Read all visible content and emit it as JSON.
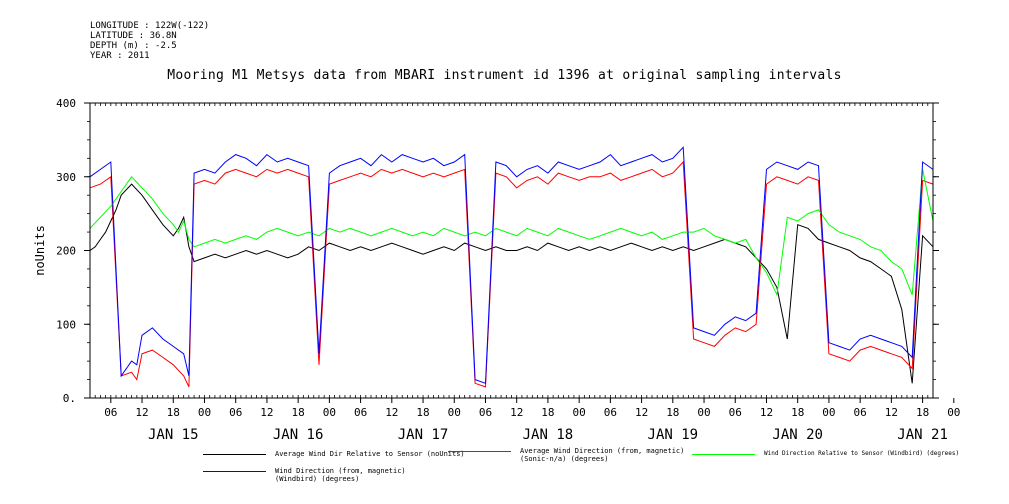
{
  "meta": {
    "longitude": "LONGITUDE : 122W(-122)",
    "latitude": "LATITUDE : 36.8N",
    "depth": "DEPTH (m) : -2.5",
    "year": "YEAR : 2011"
  },
  "chart_data": {
    "type": "line",
    "title": "Mooring M1 Metsys data from MBARI instrument id 1396 at original sampling intervals",
    "ylabel": "noUnits",
    "xlabel": "",
    "ylim": [
      0,
      400
    ],
    "yticks": [
      "0.",
      "100",
      "200",
      "300",
      "400"
    ],
    "xlim_hours": [
      0,
      162
    ],
    "hour_tick_labels": [
      "06",
      "12",
      "18",
      "00",
      "06",
      "12",
      "18",
      "00",
      "06",
      "12",
      "18",
      "00",
      "06",
      "12",
      "18",
      "00",
      "06",
      "12",
      "18",
      "00",
      "06",
      "12",
      "18",
      "00",
      "06",
      "12",
      "18",
      "00"
    ],
    "day_labels": [
      "JAN 15",
      "JAN 16",
      "JAN 17",
      "JAN 18",
      "JAN 19",
      "JAN 20",
      "JAN 21"
    ],
    "grid": false,
    "legend_position": "bottom",
    "series": [
      {
        "name": "Average Wind Dir Relative to Sensor (noUnits)",
        "color": "#000000",
        "x": [
          0,
          1,
          2,
          3,
          4,
          5,
          6,
          8,
          10,
          12,
          14,
          16,
          17,
          18,
          19,
          20,
          22,
          24,
          26,
          28,
          30,
          32,
          34,
          36,
          38,
          40,
          42,
          44,
          46,
          48,
          50,
          52,
          54,
          56,
          58,
          60,
          62,
          64,
          66,
          68,
          70,
          72,
          74,
          76,
          78,
          80,
          82,
          84,
          86,
          88,
          90,
          92,
          94,
          96,
          98,
          100,
          102,
          104,
          106,
          108,
          110,
          112,
          114,
          116,
          118,
          120,
          122,
          124,
          126,
          128,
          130,
          132,
          134,
          136,
          138,
          140,
          142,
          144,
          146,
          148,
          150,
          152,
          154,
          156,
          158,
          160,
          162
        ],
        "y": [
          200,
          205,
          215,
          225,
          240,
          255,
          275,
          290,
          275,
          255,
          235,
          220,
          230,
          245,
          205,
          185,
          190,
          195,
          190,
          195,
          200,
          195,
          200,
          195,
          190,
          195,
          205,
          200,
          210,
          205,
          200,
          205,
          200,
          205,
          210,
          205,
          200,
          195,
          200,
          205,
          200,
          210,
          205,
          200,
          205,
          200,
          200,
          205,
          200,
          210,
          205,
          200,
          205,
          200,
          205,
          200,
          205,
          210,
          205,
          200,
          205,
          200,
          205,
          200,
          205,
          210,
          215,
          210,
          205,
          190,
          175,
          150,
          80,
          235,
          230,
          215,
          210,
          205,
          200,
          190,
          185,
          175,
          165,
          120,
          20,
          220,
          205
        ]
      },
      {
        "name": "Average Wind Direction (from, magnetic) (Sonic-n/a) (degrees)",
        "color": "#ff0000",
        "x": [
          0,
          2,
          4,
          6,
          8,
          9,
          10,
          12,
          14,
          16,
          18,
          19,
          20,
          22,
          24,
          26,
          28,
          30,
          32,
          34,
          36,
          38,
          40,
          42,
          44,
          46,
          48,
          50,
          52,
          54,
          56,
          58,
          60,
          62,
          64,
          66,
          68,
          70,
          72,
          74,
          76,
          78,
          80,
          82,
          84,
          86,
          88,
          90,
          92,
          94,
          96,
          98,
          100,
          102,
          104,
          106,
          108,
          110,
          112,
          114,
          116,
          118,
          120,
          122,
          124,
          126,
          128,
          130,
          132,
          134,
          136,
          138,
          140,
          142,
          144,
          146,
          148,
          150,
          152,
          154,
          156,
          158,
          160,
          162
        ],
        "y": [
          285,
          290,
          300,
          30,
          35,
          25,
          60,
          65,
          55,
          45,
          30,
          15,
          290,
          295,
          290,
          305,
          310,
          305,
          300,
          310,
          305,
          310,
          305,
          300,
          45,
          290,
          295,
          300,
          305,
          300,
          310,
          305,
          310,
          305,
          300,
          305,
          300,
          305,
          310,
          20,
          15,
          305,
          300,
          285,
          295,
          300,
          290,
          305,
          300,
          295,
          300,
          300,
          305,
          295,
          300,
          305,
          310,
          300,
          305,
          320,
          80,
          75,
          70,
          85,
          95,
          90,
          100,
          290,
          300,
          295,
          290,
          300,
          295,
          60,
          55,
          50,
          65,
          70,
          65,
          60,
          55,
          40,
          295,
          290
        ]
      },
      {
        "name": "Wind Direction Relative to Sensor (Windbird) (degrees)",
        "color": "#00ff00",
        "x": [
          0,
          2,
          4,
          6,
          8,
          10,
          12,
          14,
          16,
          17,
          18,
          19,
          20,
          22,
          24,
          26,
          28,
          30,
          32,
          34,
          36,
          38,
          40,
          42,
          44,
          46,
          48,
          50,
          52,
          54,
          56,
          58,
          60,
          62,
          64,
          66,
          68,
          70,
          72,
          74,
          76,
          78,
          80,
          82,
          84,
          86,
          88,
          90,
          92,
          94,
          96,
          98,
          100,
          102,
          104,
          106,
          108,
          110,
          112,
          114,
          116,
          118,
          120,
          122,
          124,
          126,
          128,
          130,
          132,
          134,
          136,
          138,
          140,
          142,
          144,
          146,
          148,
          150,
          152,
          154,
          156,
          158,
          160,
          162
        ],
        "y": [
          230,
          245,
          260,
          280,
          300,
          285,
          270,
          250,
          235,
          225,
          240,
          215,
          205,
          210,
          215,
          210,
          215,
          220,
          215,
          225,
          230,
          225,
          220,
          225,
          220,
          230,
          225,
          230,
          225,
          220,
          225,
          230,
          225,
          220,
          225,
          220,
          230,
          225,
          220,
          225,
          220,
          230,
          225,
          220,
          230,
          225,
          220,
          230,
          225,
          220,
          215,
          220,
          225,
          230,
          225,
          220,
          225,
          215,
          220,
          225,
          225,
          230,
          220,
          215,
          210,
          215,
          190,
          170,
          140,
          245,
          240,
          250,
          255,
          235,
          225,
          220,
          215,
          205,
          200,
          185,
          175,
          140,
          310,
          240
        ]
      },
      {
        "name": "Wind Direction (from, magnetic) (Windbird) (degrees)",
        "color": "#0000ff",
        "x": [
          0,
          2,
          4,
          6,
          8,
          9,
          10,
          12,
          14,
          16,
          18,
          19,
          20,
          22,
          24,
          26,
          28,
          30,
          32,
          34,
          36,
          38,
          40,
          42,
          44,
          46,
          48,
          50,
          52,
          54,
          56,
          58,
          60,
          62,
          64,
          66,
          68,
          70,
          72,
          74,
          76,
          78,
          80,
          82,
          84,
          86,
          88,
          90,
          92,
          94,
          96,
          98,
          100,
          102,
          104,
          106,
          108,
          110,
          112,
          114,
          116,
          118,
          120,
          122,
          124,
          126,
          128,
          130,
          132,
          134,
          136,
          138,
          140,
          142,
          144,
          146,
          148,
          150,
          152,
          154,
          156,
          158,
          160,
          162
        ],
        "y": [
          300,
          310,
          320,
          30,
          50,
          45,
          85,
          95,
          80,
          70,
          60,
          30,
          305,
          310,
          305,
          320,
          330,
          325,
          315,
          330,
          320,
          325,
          320,
          315,
          60,
          305,
          315,
          320,
          325,
          315,
          330,
          320,
          330,
          325,
          320,
          325,
          315,
          320,
          330,
          25,
          20,
          320,
          315,
          300,
          310,
          315,
          305,
          320,
          315,
          310,
          315,
          320,
          330,
          315,
          320,
          325,
          330,
          320,
          325,
          340,
          95,
          90,
          85,
          100,
          110,
          105,
          115,
          310,
          320,
          315,
          310,
          320,
          315,
          75,
          70,
          65,
          80,
          85,
          80,
          75,
          70,
          55,
          320,
          310
        ]
      }
    ]
  }
}
